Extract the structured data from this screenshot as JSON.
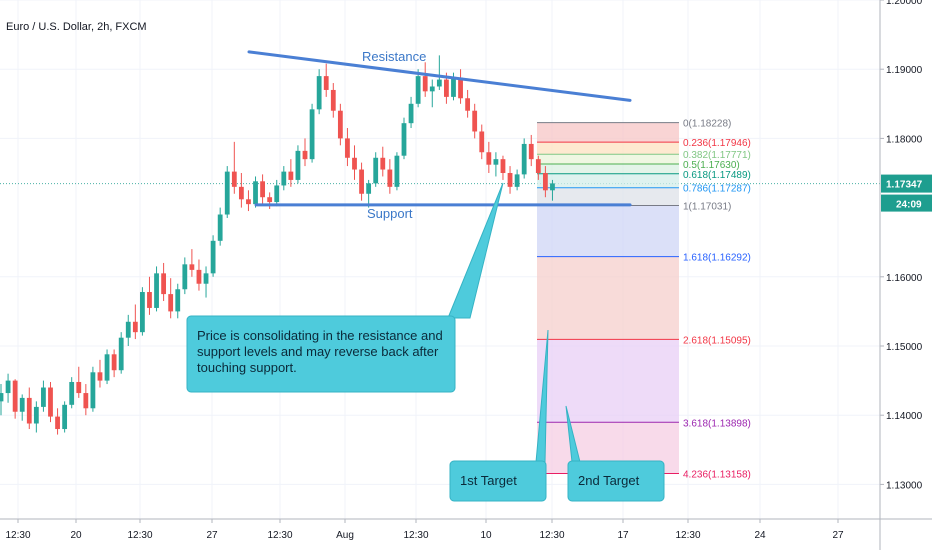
{
  "chart_data": {
    "type": "candlestick",
    "title": "Euro / U.S. Dollar, 2h, FXCM",
    "ylim": [
      1.125,
      1.2
    ],
    "y_ticks": [
      {
        "value": 1.2,
        "label": "1.20000"
      },
      {
        "value": 1.19,
        "label": "1.19000"
      },
      {
        "value": 1.18,
        "label": "1.18000"
      },
      {
        "value": 1.16,
        "label": "1.16000"
      },
      {
        "value": 1.15,
        "label": "1.15000"
      },
      {
        "value": 1.14,
        "label": "1.14000"
      },
      {
        "value": 1.13,
        "label": "1.13000"
      }
    ],
    "x_ticks": [
      "12:30",
      "20",
      "12:30",
      "27",
      "12:30",
      "Aug",
      "12:30",
      "10",
      "12:30",
      "17",
      "12:30",
      "24",
      "27"
    ],
    "last_price": {
      "label": "1.17347",
      "value": 1.17347,
      "countdown": "24:09"
    },
    "candles": [
      [
        1.142,
        1.1445,
        1.14,
        1.1432
      ],
      [
        1.1432,
        1.146,
        1.1418,
        1.145
      ],
      [
        1.145,
        1.1452,
        1.1395,
        1.1405
      ],
      [
        1.1405,
        1.143,
        1.1392,
        1.1425
      ],
      [
        1.1425,
        1.144,
        1.138,
        1.1388
      ],
      [
        1.1388,
        1.142,
        1.1375,
        1.1412
      ],
      [
        1.1412,
        1.145,
        1.1405,
        1.144
      ],
      [
        1.144,
        1.1448,
        1.139,
        1.1398
      ],
      [
        1.1398,
        1.141,
        1.1372,
        1.138
      ],
      [
        1.138,
        1.142,
        1.1375,
        1.1415
      ],
      [
        1.1415,
        1.1455,
        1.141,
        1.1448
      ],
      [
        1.1448,
        1.147,
        1.1425,
        1.1432
      ],
      [
        1.1432,
        1.1445,
        1.14,
        1.141
      ],
      [
        1.141,
        1.147,
        1.1405,
        1.1462
      ],
      [
        1.1462,
        1.148,
        1.144,
        1.145
      ],
      [
        1.145,
        1.1495,
        1.1445,
        1.1488
      ],
      [
        1.1488,
        1.1495,
        1.1455,
        1.1465
      ],
      [
        1.1465,
        1.152,
        1.146,
        1.1512
      ],
      [
        1.1512,
        1.1545,
        1.15,
        1.1535
      ],
      [
        1.1535,
        1.156,
        1.151,
        1.152
      ],
      [
        1.152,
        1.1585,
        1.1515,
        1.1578
      ],
      [
        1.1578,
        1.16,
        1.1545,
        1.1555
      ],
      [
        1.1555,
        1.1615,
        1.155,
        1.1605
      ],
      [
        1.1605,
        1.162,
        1.1565,
        1.1575
      ],
      [
        1.1575,
        1.1598,
        1.154,
        1.155
      ],
      [
        1.155,
        1.159,
        1.154,
        1.1582
      ],
      [
        1.1582,
        1.1628,
        1.1575,
        1.1618
      ],
      [
        1.1618,
        1.164,
        1.16,
        1.161
      ],
      [
        1.161,
        1.1625,
        1.158,
        1.159
      ],
      [
        1.159,
        1.1615,
        1.157,
        1.1605
      ],
      [
        1.1605,
        1.166,
        1.16,
        1.1652
      ],
      [
        1.1652,
        1.17,
        1.1645,
        1.169
      ],
      [
        1.169,
        1.176,
        1.1685,
        1.1752
      ],
      [
        1.1752,
        1.1795,
        1.172,
        1.173
      ],
      [
        1.173,
        1.175,
        1.17,
        1.1712
      ],
      [
        1.1712,
        1.1725,
        1.1695,
        1.1705
      ],
      [
        1.1705,
        1.1745,
        1.17,
        1.1738
      ],
      [
        1.1738,
        1.1748,
        1.1705,
        1.1715
      ],
      [
        1.1715,
        1.1722,
        1.1698,
        1.1708
      ],
      [
        1.1708,
        1.174,
        1.1702,
        1.1732
      ],
      [
        1.1732,
        1.176,
        1.1725,
        1.1752
      ],
      [
        1.1752,
        1.177,
        1.173,
        1.174
      ],
      [
        1.174,
        1.179,
        1.1735,
        1.1782
      ],
      [
        1.1782,
        1.18,
        1.176,
        1.177
      ],
      [
        1.177,
        1.185,
        1.1765,
        1.1842
      ],
      [
        1.1842,
        1.19,
        1.1835,
        1.189
      ],
      [
        1.189,
        1.1908,
        1.186,
        1.187
      ],
      [
        1.187,
        1.188,
        1.183,
        1.184
      ],
      [
        1.184,
        1.185,
        1.179,
        1.18
      ],
      [
        1.18,
        1.1815,
        1.176,
        1.1772
      ],
      [
        1.1772,
        1.179,
        1.174,
        1.1755
      ],
      [
        1.1755,
        1.1765,
        1.171,
        1.172
      ],
      [
        1.172,
        1.174,
        1.17,
        1.1735
      ],
      [
        1.1735,
        1.178,
        1.173,
        1.1772
      ],
      [
        1.1772,
        1.1788,
        1.1745,
        1.1755
      ],
      [
        1.1755,
        1.177,
        1.172,
        1.173
      ],
      [
        1.173,
        1.178,
        1.1725,
        1.1775
      ],
      [
        1.1775,
        1.183,
        1.177,
        1.1822
      ],
      [
        1.1822,
        1.186,
        1.1815,
        1.185
      ],
      [
        1.185,
        1.19,
        1.1845,
        1.189
      ],
      [
        1.189,
        1.191,
        1.186,
        1.1868
      ],
      [
        1.1868,
        1.1885,
        1.1845,
        1.1875
      ],
      [
        1.1875,
        1.192,
        1.187,
        1.1885
      ],
      [
        1.1885,
        1.1895,
        1.185,
        1.186
      ],
      [
        1.186,
        1.1895,
        1.1855,
        1.1888
      ],
      [
        1.1888,
        1.19,
        1.185,
        1.1858
      ],
      [
        1.1858,
        1.187,
        1.183,
        1.184
      ],
      [
        1.184,
        1.185,
        1.18,
        1.181
      ],
      [
        1.181,
        1.182,
        1.177,
        1.178
      ],
      [
        1.178,
        1.1795,
        1.175,
        1.1762
      ],
      [
        1.1762,
        1.178,
        1.1745,
        1.177
      ],
      [
        1.177,
        1.1775,
        1.174,
        1.175
      ],
      [
        1.175,
        1.176,
        1.172,
        1.173
      ],
      [
        1.173,
        1.1755,
        1.1725,
        1.1748
      ],
      [
        1.1748,
        1.18,
        1.1742,
        1.1792
      ],
      [
        1.1792,
        1.1805,
        1.176,
        1.177
      ],
      [
        1.177,
        1.1775,
        1.174,
        1.175
      ],
      [
        1.175,
        1.176,
        1.1715,
        1.1725
      ],
      [
        1.1725,
        1.174,
        1.171,
        1.1735
      ]
    ],
    "lines": [
      {
        "label": "Resistance",
        "from": [
          28,
          1.1925
        ],
        "to": [
          72,
          1.1855
        ]
      },
      {
        "label": "Support",
        "from": [
          29,
          1.1704
        ],
        "to": [
          72,
          1.1704
        ]
      }
    ],
    "fib_levels": [
      {
        "ratio": "0",
        "value": 1.18228,
        "label": "0(1.18228)",
        "color": "#787b86"
      },
      {
        "ratio": "0.236",
        "value": 1.17946,
        "label": "0.236(1.17946)",
        "color": "#f23645"
      },
      {
        "ratio": "0.382",
        "value": 1.17771,
        "label": "0.382(1.17771)",
        "color": "#81c784"
      },
      {
        "ratio": "0.5",
        "value": 1.1763,
        "label": "0.5(1.17630)",
        "color": "#4caf50"
      },
      {
        "ratio": "0.618",
        "value": 1.17489,
        "label": "0.618(1.17489)",
        "color": "#089981"
      },
      {
        "ratio": "0.786",
        "value": 1.17287,
        "label": "0.786(1.17287)",
        "color": "#2196f3"
      },
      {
        "ratio": "1",
        "value": 1.17031,
        "label": "1(1.17031)",
        "color": "#787b86"
      },
      {
        "ratio": "1.618",
        "value": 1.16292,
        "label": "1.618(1.16292)",
        "color": "#2962ff"
      },
      {
        "ratio": "2.618",
        "value": 1.15095,
        "label": "2.618(1.15095)",
        "color": "#f23645"
      },
      {
        "ratio": "3.618",
        "value": 1.13898,
        "label": "3.618(1.13898)",
        "color": "#9c27b0"
      },
      {
        "ratio": "4.236",
        "value": 1.13158,
        "label": "4.236(1.13158)",
        "color": "#e91e63"
      }
    ],
    "annotations": {
      "resistance_label": "Resistance",
      "support_label": "Support",
      "callout_lines": [
        "Price is consolidating in the resistance and",
        "support levels and may reverse back after",
        "touching support."
      ],
      "target1": "1st Target",
      "target2": "2nd Target"
    },
    "colors": {
      "up": "#26a69a",
      "down": "#ef5350",
      "trendline": "#4a7fd4",
      "callout": "#4ecbdc",
      "price_tag": "#1e9e8f"
    }
  }
}
